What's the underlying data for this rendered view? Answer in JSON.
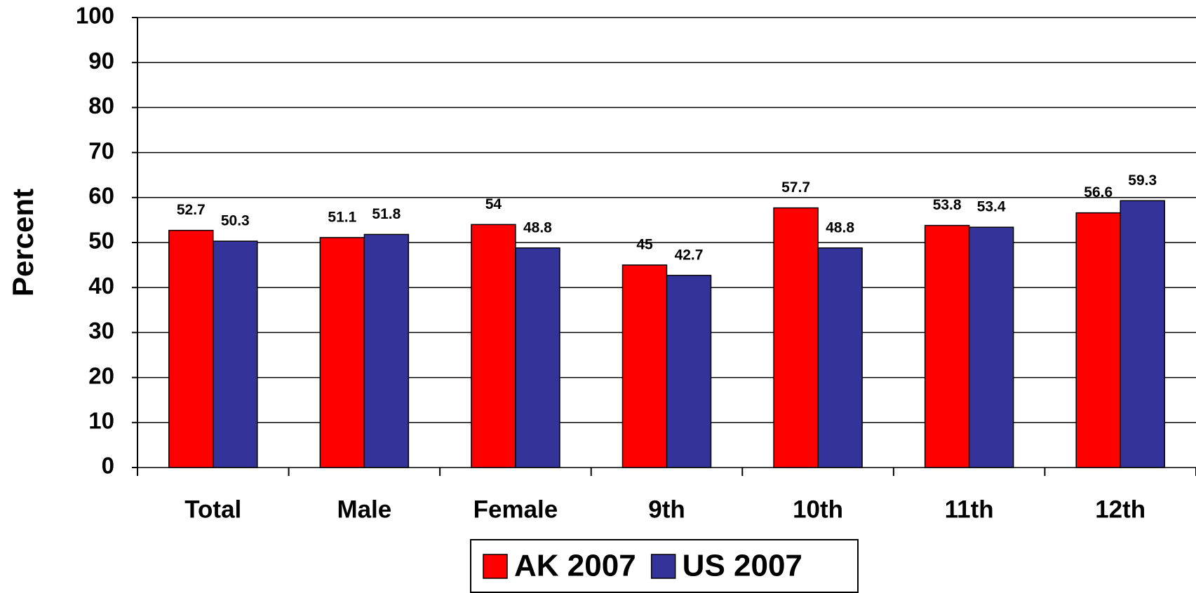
{
  "chart_data": {
    "type": "bar",
    "y_label": "Percent",
    "categories": [
      "Total",
      "Male",
      "Female",
      "9th",
      "10th",
      "11th",
      "12th"
    ],
    "series": [
      {
        "name": "AK 2007",
        "color": "#ff0000",
        "values": [
          52.7,
          51.1,
          54,
          45,
          57.7,
          53.8,
          56.6
        ]
      },
      {
        "name": "US 2007",
        "color": "#333399",
        "values": [
          50.3,
          51.8,
          48.8,
          42.7,
          48.8,
          53.4,
          59.3
        ]
      }
    ],
    "ylim": [
      0,
      100
    ],
    "yticks": [
      0,
      10,
      20,
      30,
      40,
      50,
      60,
      70,
      80,
      90,
      100
    ],
    "grid": true,
    "legend": "bottom"
  }
}
